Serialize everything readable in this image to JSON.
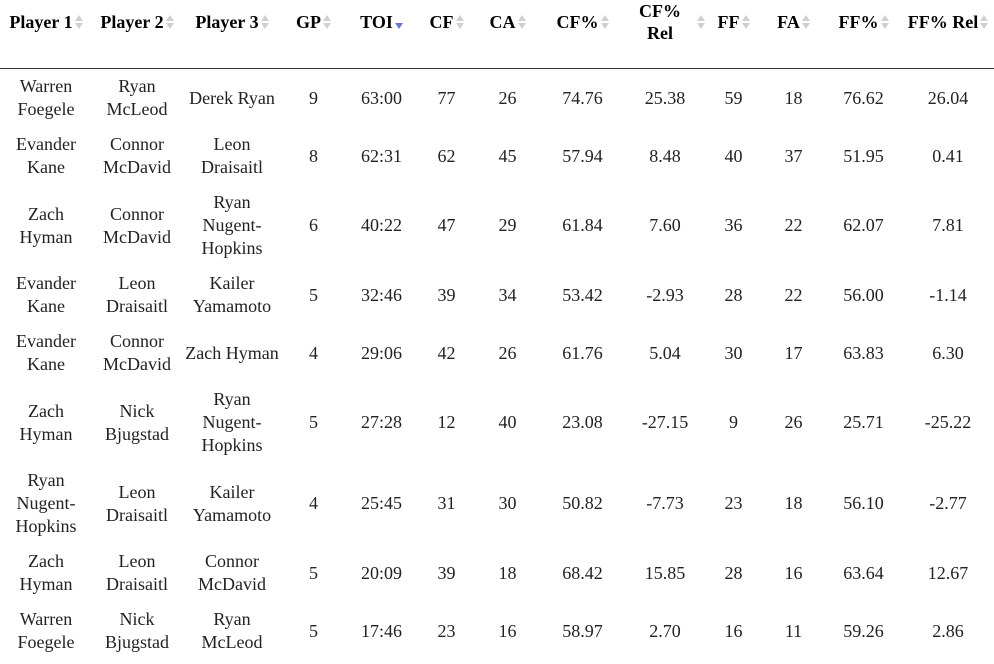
{
  "table": {
    "headers": [
      "Player 1",
      "Player 2",
      "Player 3",
      "GP",
      "TOI",
      "CF",
      "CA",
      "CF%",
      "CF% Rel",
      "FF",
      "FA",
      "FF%",
      "FF% Rel"
    ],
    "sorted_column": 4,
    "rows": [
      [
        "Warren Foegele",
        "Ryan McLeod",
        "Derek Ryan",
        "9",
        "63:00",
        "77",
        "26",
        "74.76",
        "25.38",
        "59",
        "18",
        "76.62",
        "26.04"
      ],
      [
        "Evander Kane",
        "Connor McDavid",
        "Leon Draisaitl",
        "8",
        "62:31",
        "62",
        "45",
        "57.94",
        "8.48",
        "40",
        "37",
        "51.95",
        "0.41"
      ],
      [
        "Zach Hyman",
        "Connor McDavid",
        "Ryan Nugent-Hopkins",
        "6",
        "40:22",
        "47",
        "29",
        "61.84",
        "7.60",
        "36",
        "22",
        "62.07",
        "7.81"
      ],
      [
        "Evander Kane",
        "Leon Draisaitl",
        "Kailer Yamamoto",
        "5",
        "32:46",
        "39",
        "34",
        "53.42",
        "-2.93",
        "28",
        "22",
        "56.00",
        "-1.14"
      ],
      [
        "Evander Kane",
        "Connor McDavid",
        "Zach Hyman",
        "4",
        "29:06",
        "42",
        "26",
        "61.76",
        "5.04",
        "30",
        "17",
        "63.83",
        "6.30"
      ],
      [
        "Zach Hyman",
        "Nick Bjugstad",
        "Ryan Nugent-Hopkins",
        "5",
        "27:28",
        "12",
        "40",
        "23.08",
        "-27.15",
        "9",
        "26",
        "25.71",
        "-25.22"
      ],
      [
        "Ryan Nugent-Hopkins",
        "Leon Draisaitl",
        "Kailer Yamamoto",
        "4",
        "25:45",
        "31",
        "30",
        "50.82",
        "-7.73",
        "23",
        "18",
        "56.10",
        "-2.77"
      ],
      [
        "Zach Hyman",
        "Leon Draisaitl",
        "Connor McDavid",
        "5",
        "20:09",
        "39",
        "18",
        "68.42",
        "15.85",
        "28",
        "16",
        "63.64",
        "12.67"
      ],
      [
        "Warren Foegele",
        "Nick Bjugstad",
        "Ryan McLeod",
        "5",
        "17:46",
        "23",
        "16",
        "58.97",
        "2.70",
        "16",
        "11",
        "59.26",
        "2.86"
      ]
    ]
  }
}
